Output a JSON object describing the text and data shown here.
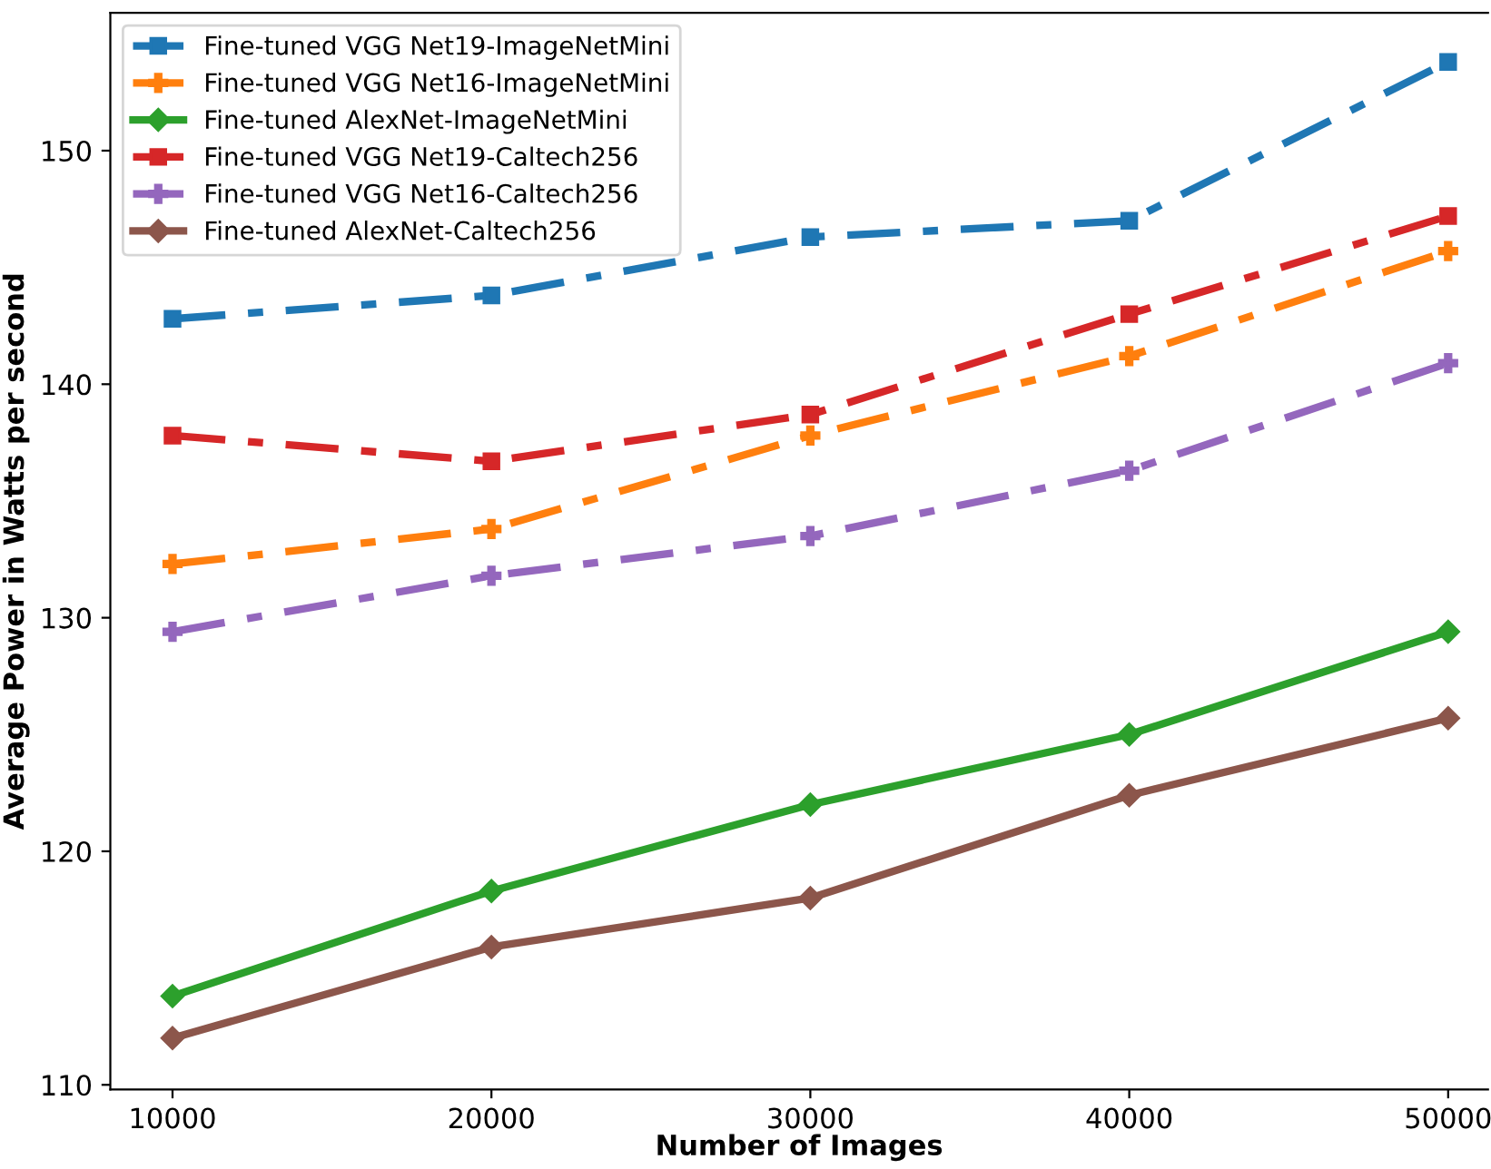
{
  "chart_data": {
    "type": "line",
    "xlabel": "Number of Images",
    "ylabel": "Average Power in Watts per second",
    "x": [
      10000,
      20000,
      30000,
      40000,
      50000
    ],
    "xlim": [
      8050,
      51250
    ],
    "xticks": [
      10000,
      20000,
      30000,
      40000,
      50000
    ],
    "ylim": [
      109.8,
      155.9
    ],
    "yticks": [
      110,
      120,
      130,
      140,
      150
    ],
    "grid": false,
    "legend": "top left",
    "series": [
      {
        "name": "Fine-tuned VGG Net19-ImageNetMini",
        "color": "#1f77b4",
        "marker": "square",
        "line_style": "dashed",
        "values": [
          142.8,
          143.8,
          146.3,
          147.0,
          153.8
        ]
      },
      {
        "name": "Fine-tuned VGG Net16-ImageNetMini",
        "color": "#ff7f0e",
        "marker": "cross",
        "line_style": "dashed",
        "values": [
          132.3,
          133.8,
          137.8,
          141.2,
          145.7
        ]
      },
      {
        "name": "Fine-tuned AlexNet-ImageNetMini",
        "color": "#2ca02c",
        "marker": "diamond",
        "line_style": "solid",
        "values": [
          113.8,
          118.3,
          122.0,
          125.0,
          129.4
        ]
      },
      {
        "name": "Fine-tuned VGG Net19-Caltech256",
        "color": "#d62728",
        "marker": "square",
        "line_style": "dashed",
        "values": [
          137.8,
          136.7,
          138.7,
          143.0,
          147.2
        ]
      },
      {
        "name": "Fine-tuned VGG Net16-Caltech256",
        "color": "#9467bd",
        "marker": "cross",
        "line_style": "dashed",
        "values": [
          129.4,
          131.8,
          133.5,
          136.3,
          140.9
        ]
      },
      {
        "name": "Fine-tuned AlexNet-Caltech256",
        "color": "#8c564b",
        "marker": "diamond",
        "line_style": "solid",
        "values": [
          112.0,
          115.9,
          118.0,
          122.4,
          125.7
        ]
      }
    ]
  }
}
